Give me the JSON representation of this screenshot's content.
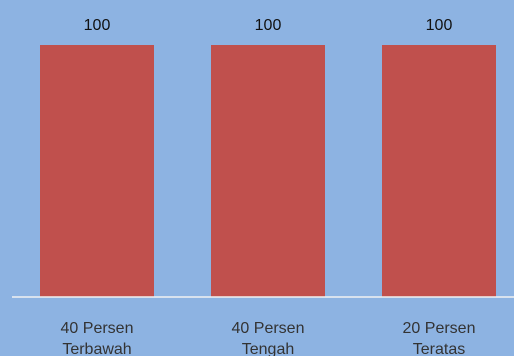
{
  "chart_data": {
    "type": "bar",
    "categories": [
      [
        "40 Persen",
        "Terbawah"
      ],
      [
        "40 Persen",
        "Tengah"
      ],
      [
        "20 Persen",
        "Teratas"
      ]
    ],
    "values": [
      100,
      100,
      100
    ],
    "data_labels": [
      "100",
      "100",
      "100"
    ],
    "ylim": [
      0,
      100
    ],
    "grid": false,
    "legend": "none",
    "colors": {
      "background": "#8DB3E2",
      "bar": "#C0504D",
      "axis": "#F2F2F2"
    }
  }
}
